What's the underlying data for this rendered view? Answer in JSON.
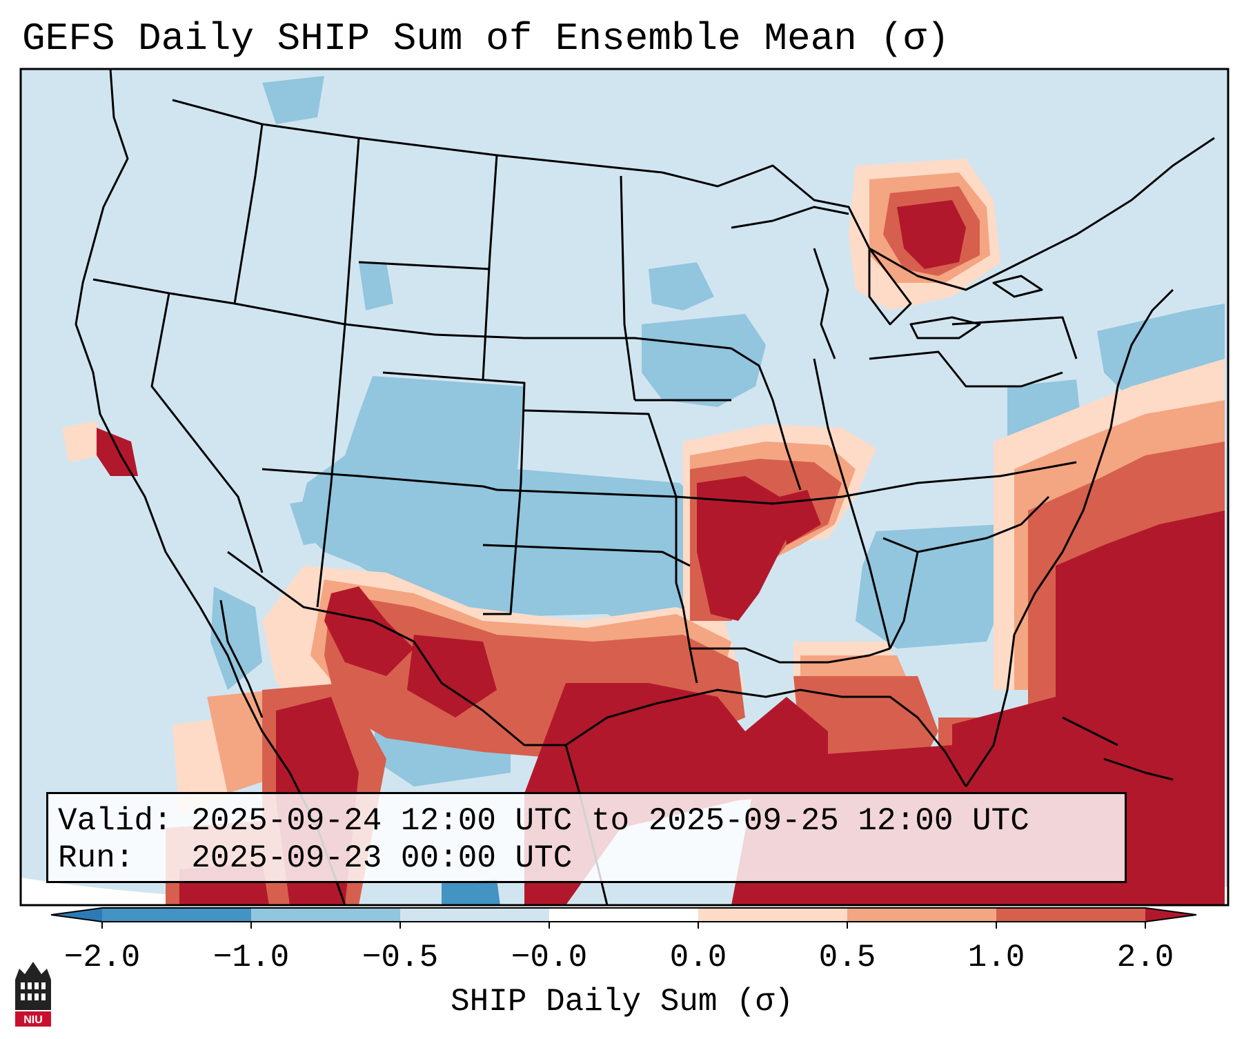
{
  "title": "GEFS Daily SHIP Sum of Ensemble Mean (σ)",
  "info": {
    "valid_label": "Valid:",
    "valid_value": "2025-09-24 12:00 UTC to 2025-09-25 12:00 UTC",
    "run_label": "Run:",
    "run_value": "2025-09-23 00:00 UTC"
  },
  "colorbar": {
    "label": "SHIP Daily Sum (σ)",
    "ticks": [
      "−2.0",
      "−1.0",
      "−0.5",
      "−0.0",
      "0.0",
      "0.5",
      "1.0",
      "2.0"
    ],
    "colors": [
      "#2c7bb6",
      "#4393c3",
      "#92c5de",
      "#d1e5f0",
      "#ffffff",
      "#fddbc7",
      "#f4a582",
      "#d6604d",
      "#b2182b"
    ]
  },
  "legend_colors": {
    "land_background": "#d1e5f0",
    "negative_light": "#92c5de",
    "negative_strong": "#4393c3",
    "positive_light": "#fddbc7",
    "positive_mid": "#f4a582",
    "positive_strong": "#d6604d",
    "positive_max": "#b2182b"
  },
  "map_regions": [
    {
      "name": "southeast-us-high-ship",
      "category": "positive_max"
    },
    {
      "name": "gulf-of-mexico-high-ship",
      "category": "positive_max"
    },
    {
      "name": "atlantic-high-ship",
      "category": "positive_max"
    },
    {
      "name": "great-lakes-high-ship",
      "category": "positive_max"
    },
    {
      "name": "southwest-high-ship",
      "category": "positive_max"
    },
    {
      "name": "california-high-ship",
      "category": "positive_max"
    },
    {
      "name": "plains-low-ship",
      "category": "negative_light"
    }
  ],
  "logo": {
    "text": "NIU"
  }
}
